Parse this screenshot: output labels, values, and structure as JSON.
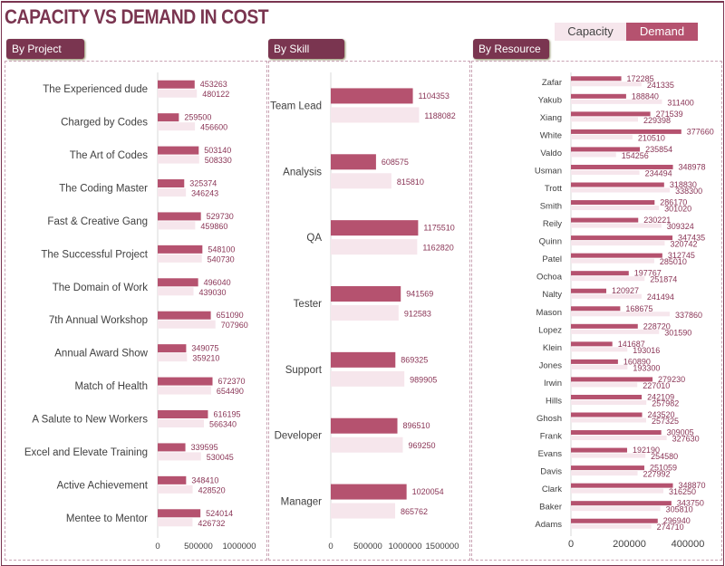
{
  "title": "CAPACITY VS DEMAND IN COST",
  "legend": {
    "capacity": "Capacity",
    "demand": "Demand"
  },
  "colors": {
    "capacity": "#f6e6ec",
    "demand": "#b5526f",
    "label": "#8a3556",
    "frame": "#7a3550"
  },
  "tabs": {
    "project": "By Project",
    "skill": "By Skill",
    "resource": "By Resource"
  },
  "chart_data": [
    {
      "type": "bar",
      "orientation": "horizontal",
      "name": "By Project",
      "xlim": [
        0,
        1000000
      ],
      "ticks": [
        "0",
        "500000",
        "1000000"
      ],
      "categories": [
        "The Experienced dude",
        "Charged by Codes",
        "The Art of Codes",
        "The Coding Master",
        "Fast & Creative Gang",
        "The Successful Project",
        "The Domain of Work",
        "7th Annual Workshop",
        "Annual Award Show",
        "Match of Health",
        "A Salute to New Workers",
        "Excel and Elevate Training",
        "Active Achievement",
        "Mentee to Mentor"
      ],
      "series": [
        {
          "name": "Demand",
          "values": [
            453263,
            259500,
            503140,
            325374,
            529730,
            548100,
            496040,
            651090,
            349075,
            672370,
            616195,
            339595,
            348410,
            524014
          ]
        },
        {
          "name": "Capacity",
          "values": [
            480122,
            456600,
            508330,
            346243,
            459860,
            540730,
            439030,
            707960,
            359210,
            654490,
            566340,
            530045,
            428520,
            426732
          ]
        }
      ]
    },
    {
      "type": "bar",
      "orientation": "horizontal",
      "name": "By Skill",
      "xlim": [
        0,
        1500000
      ],
      "ticks": [
        "0",
        "500000",
        "1000000",
        "1500000"
      ],
      "categories": [
        "Team Lead",
        "Analysis",
        "QA",
        "Tester",
        "Support",
        "Developer",
        "Manager"
      ],
      "series": [
        {
          "name": "Demand",
          "values": [
            1104353,
            608575,
            1175510,
            941569,
            869325,
            896510,
            1020054
          ]
        },
        {
          "name": "Capacity",
          "values": [
            1188082,
            815810,
            1162820,
            912583,
            989905,
            969250,
            865762
          ]
        }
      ]
    },
    {
      "type": "bar",
      "orientation": "horizontal",
      "name": "By Resource",
      "xlim": [
        0,
        400000
      ],
      "ticks": [
        "0",
        "200000",
        "400000"
      ],
      "categories": [
        "Zafar",
        "Yakub",
        "Xiang",
        "White",
        "Valdo",
        "Usman",
        "Trott",
        "Smith",
        "Reily",
        "Quinn",
        "Patel",
        "Ochoa",
        "Nalty",
        "Mason",
        "Lopez",
        "Klein",
        "Jones",
        "Irwin",
        "Hills",
        "Ghosh",
        "Frank",
        "Evans",
        "Davis",
        "Clark",
        "Baker",
        "Adams"
      ],
      "series": [
        {
          "name": "Demand",
          "values": [
            172285,
            188840,
            271539,
            377660,
            235854,
            348978,
            318830,
            286170,
            230221,
            347435,
            312745,
            197767,
            120927,
            168675,
            228720,
            141687,
            160890,
            279230,
            242109,
            243520,
            309005,
            192190,
            251059,
            348870,
            343750,
            296940
          ]
        },
        {
          "name": "Capacity",
          "values": [
            241335,
            311400,
            229398,
            210510,
            154256,
            234494,
            338300,
            301020,
            309324,
            320742,
            285010,
            251874,
            241494,
            337860,
            301590,
            193016,
            193300,
            227010,
            257982,
            257325,
            327630,
            254580,
            227992,
            316250,
            305810,
            274710
          ]
        }
      ]
    }
  ]
}
